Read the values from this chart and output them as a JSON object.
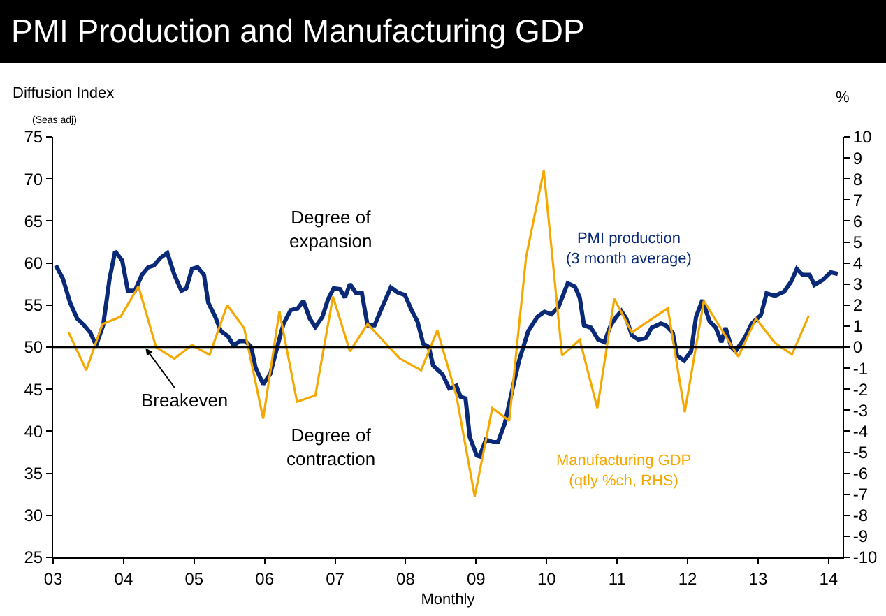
{
  "chart_data": {
    "type": "line",
    "title": "PMI Production and Manufacturing GDP",
    "xlabel": "Monthly",
    "ylabel": "Diffusion Index",
    "y2label": "%",
    "annotations": [
      "(Seas adj)",
      {
        "text": "Breakeven",
        "x": 2004.3,
        "y": 50
      },
      "Degree of expansion",
      "Degree of contraction"
    ],
    "xlim": [
      2003,
      2014.2
    ],
    "xticks": [
      {
        "value": 2003,
        "label": "03"
      },
      {
        "value": 2004,
        "label": "04"
      },
      {
        "value": 2005,
        "label": "05"
      },
      {
        "value": 2006,
        "label": "06"
      },
      {
        "value": 2007,
        "label": "07"
      },
      {
        "value": 2008,
        "label": "08"
      },
      {
        "value": 2009,
        "label": "09"
      },
      {
        "value": 2010,
        "label": "10"
      },
      {
        "value": 2011,
        "label": "11"
      },
      {
        "value": 2012,
        "label": "12"
      },
      {
        "value": 2013,
        "label": "13"
      },
      {
        "value": 2014,
        "label": "14"
      }
    ],
    "ylim": [
      25,
      75
    ],
    "yticks": [
      25,
      30,
      35,
      40,
      45,
      50,
      55,
      60,
      65,
      70,
      75
    ],
    "y2lim": [
      -10,
      10
    ],
    "y2ticks": [
      -10,
      -9,
      -8,
      -7,
      -6,
      -5,
      -4,
      -3,
      -2,
      -1,
      0,
      1,
      2,
      3,
      4,
      5,
      6,
      7,
      8,
      9,
      10
    ],
    "ref_lines": [
      {
        "axis": "y",
        "value": 50,
        "color": "#000000"
      }
    ],
    "series": [
      {
        "name": "PMI production (3 month average)",
        "color": "#0a2a78",
        "x": [
          2003.04,
          2003.14,
          2003.24,
          2003.34,
          2003.44,
          2003.53,
          2003.61,
          2003.71,
          2003.8,
          2003.88,
          2003.98,
          2004.06,
          2004.16,
          2004.26,
          2004.35,
          2004.43,
          2004.52,
          2004.62,
          2004.72,
          2004.82,
          2004.89,
          2004.97,
          2005.05,
          2005.14,
          2005.2,
          2005.3,
          2005.38,
          2005.48,
          2005.56,
          2005.65,
          2005.73,
          2005.81,
          2005.87,
          2005.98,
          2006.08,
          2006.21,
          2006.27,
          2006.37,
          2006.47,
          2006.55,
          2006.64,
          2006.72,
          2006.82,
          2006.9,
          2006.98,
          2007.07,
          2007.14,
          2007.21,
          2007.3,
          2007.38,
          2007.46,
          2007.56,
          2007.66,
          2007.79,
          2007.89,
          2007.99,
          2008.09,
          2008.17,
          2008.25,
          2008.33,
          2008.39,
          2008.52,
          2008.62,
          2008.72,
          2008.78,
          2008.85,
          2008.91,
          2009.01,
          2009.05,
          2009.14,
          2009.24,
          2009.31,
          2009.41,
          2009.51,
          2009.61,
          2009.74,
          2009.87,
          2009.97,
          2010.07,
          2010.17,
          2010.3,
          2010.4,
          2010.47,
          2010.53,
          2010.63,
          2010.73,
          2010.82,
          2010.91,
          2010.99,
          2011.06,
          2011.13,
          2011.21,
          2011.3,
          2011.41,
          2011.49,
          2011.62,
          2011.69,
          2011.79,
          2011.85,
          2011.95,
          2012.05,
          2012.12,
          2012.21,
          2012.31,
          2012.4,
          2012.48,
          2012.54,
          2012.62,
          2012.68,
          2012.81,
          2012.91,
          2013.04,
          2013.12,
          2013.24,
          2013.37,
          2013.47,
          2013.55,
          2013.63,
          2013.73,
          2013.8,
          2013.92,
          2014.03,
          2014.13
        ],
        "values": [
          59.7,
          58.1,
          55.3,
          53.4,
          52.6,
          51.7,
          50.2,
          52.6,
          58.1,
          61.4,
          60.3,
          56.7,
          56.7,
          58.6,
          59.5,
          59.7,
          60.6,
          61.2,
          58.6,
          56.7,
          57,
          59.3,
          59.5,
          58.6,
          55.3,
          53.6,
          51.9,
          51.3,
          50.2,
          50.7,
          50.7,
          50,
          47.6,
          45.6,
          46.8,
          51,
          52.8,
          54.4,
          54.6,
          55.5,
          53.4,
          52.4,
          53.6,
          55.7,
          57,
          56.9,
          55.9,
          57.5,
          56.4,
          56.4,
          52.6,
          52.6,
          54.6,
          57.1,
          56.5,
          56.2,
          54.3,
          53,
          50.4,
          50,
          47.8,
          46.8,
          45.1,
          45.4,
          44.1,
          43.9,
          39.3,
          37.1,
          37,
          39,
          38.7,
          38.7,
          41,
          44.8,
          48.4,
          51.9,
          53.6,
          54.2,
          53.9,
          54.8,
          57.6,
          57.2,
          55.9,
          52.6,
          52.3,
          50.9,
          50.6,
          52.6,
          53.6,
          54.3,
          53.4,
          51.4,
          50.9,
          51.1,
          52.3,
          52.8,
          52.6,
          51.7,
          49,
          48.4,
          49.5,
          53.6,
          55.6,
          53.1,
          52.3,
          50.6,
          52.3,
          50,
          49.5,
          51.1,
          52.8,
          53.8,
          56.4,
          56.1,
          56.6,
          57.8,
          59.3,
          58.6,
          58.6,
          57.4,
          58,
          58.9,
          58.7
        ]
      },
      {
        "name": "Manufacturing GDP (qtly %ch, RHS)",
        "color": "#f5a800",
        "axis": "y2",
        "x": [
          2003.22,
          2003.47,
          2003.7,
          2003.96,
          2004.21,
          2004.46,
          2004.72,
          2004.97,
          2005.22,
          2005.47,
          2005.71,
          2005.98,
          2006.21,
          2006.46,
          2006.72,
          2006.97,
          2007.21,
          2007.46,
          2007.92,
          2008.22,
          2008.45,
          2008.72,
          2008.98,
          2009.23,
          2009.47,
          2009.71,
          2009.96,
          2010.22,
          2010.47,
          2010.72,
          2010.96,
          2011.21,
          2011.72,
          2011.96,
          2012.23,
          2012.72,
          2012.97,
          2013.24,
          2013.48,
          2013.72
        ],
        "values": [
          0.7,
          -1.1,
          1.1,
          1.45,
          2.9,
          0,
          -0.55,
          0.1,
          -0.37,
          2,
          0.9,
          -3.4,
          1.7,
          -2.6,
          -2.3,
          2.4,
          -0.2,
          1.1,
          -0.55,
          -1.1,
          0.8,
          -2.3,
          -7.1,
          -2.9,
          -3.5,
          4.3,
          8.4,
          -0.4,
          0.35,
          -2.9,
          2.3,
          0.7,
          1.85,
          -3.1,
          2.2,
          -0.45,
          1.35,
          0.2,
          -0.35,
          1.5
        ]
      }
    ]
  }
}
